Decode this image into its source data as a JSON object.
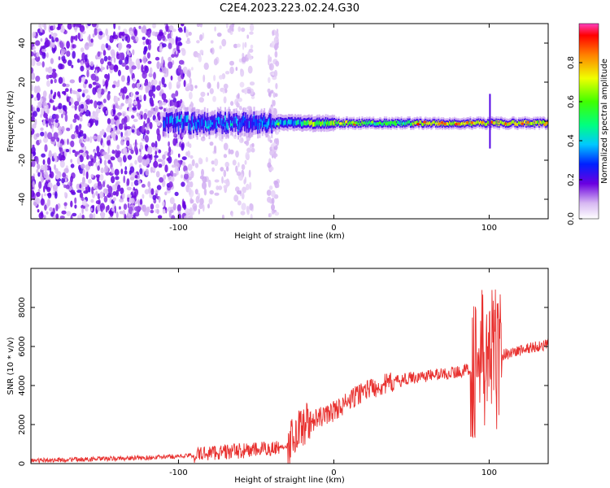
{
  "title": "C2E4.2023.223.02.24.G30",
  "chart_data": [
    {
      "type": "heatmap",
      "xlabel": "Height of straight line (km)",
      "ylabel": "Frequency (Hz)",
      "xlim": [
        -195,
        138
      ],
      "ylim": [
        -50,
        50
      ],
      "x_ticks": [
        -100,
        0,
        100
      ],
      "y_ticks": [
        -40,
        -20,
        0,
        20,
        40
      ],
      "colorbar": {
        "label": "Normalized spectral amplitude",
        "range": [
          0,
          1
        ],
        "ticks": [
          0.0,
          0.2,
          0.4,
          0.6,
          0.8
        ]
      },
      "features": [
        {
          "description": "scattered noise",
          "x_range": [
            -195,
            -90
          ],
          "y_range": [
            -50,
            50
          ],
          "amplitude": 0.15
        },
        {
          "description": "signal band",
          "x_range": [
            -110,
            138
          ],
          "center_freq_hz": 0,
          "amplitude_peak": 1.0
        }
      ]
    },
    {
      "type": "line",
      "xlabel": "Height of straight line (km)",
      "ylabel": "SNR (10 * v/v)",
      "xlim": [
        -195,
        138
      ],
      "ylim": [
        0,
        10000
      ],
      "x_ticks": [
        -100,
        0,
        100
      ],
      "y_ticks": [
        0,
        2000,
        4000,
        6000,
        8000
      ],
      "series": [
        {
          "color": "#e8302e",
          "x": [
            -195,
            -180,
            -160,
            -140,
            -120,
            -100,
            -90,
            -80,
            -70,
            -60,
            -50,
            -40,
            -30,
            -25,
            -20,
            -10,
            0,
            10,
            20,
            30,
            40,
            50,
            60,
            70,
            80,
            85,
            90,
            95,
            100,
            105,
            110,
            120,
            130,
            138
          ],
          "y": [
            150,
            180,
            220,
            260,
            300,
            380,
            420,
            560,
            600,
            650,
            700,
            780,
            900,
            1500,
            2000,
            2300,
            2700,
            3200,
            3800,
            4000,
            4200,
            4400,
            4500,
            4600,
            4700,
            4800,
            4900,
            5200,
            5400,
            5500,
            5600,
            5800,
            6000,
            6100
          ]
        }
      ]
    }
  ]
}
